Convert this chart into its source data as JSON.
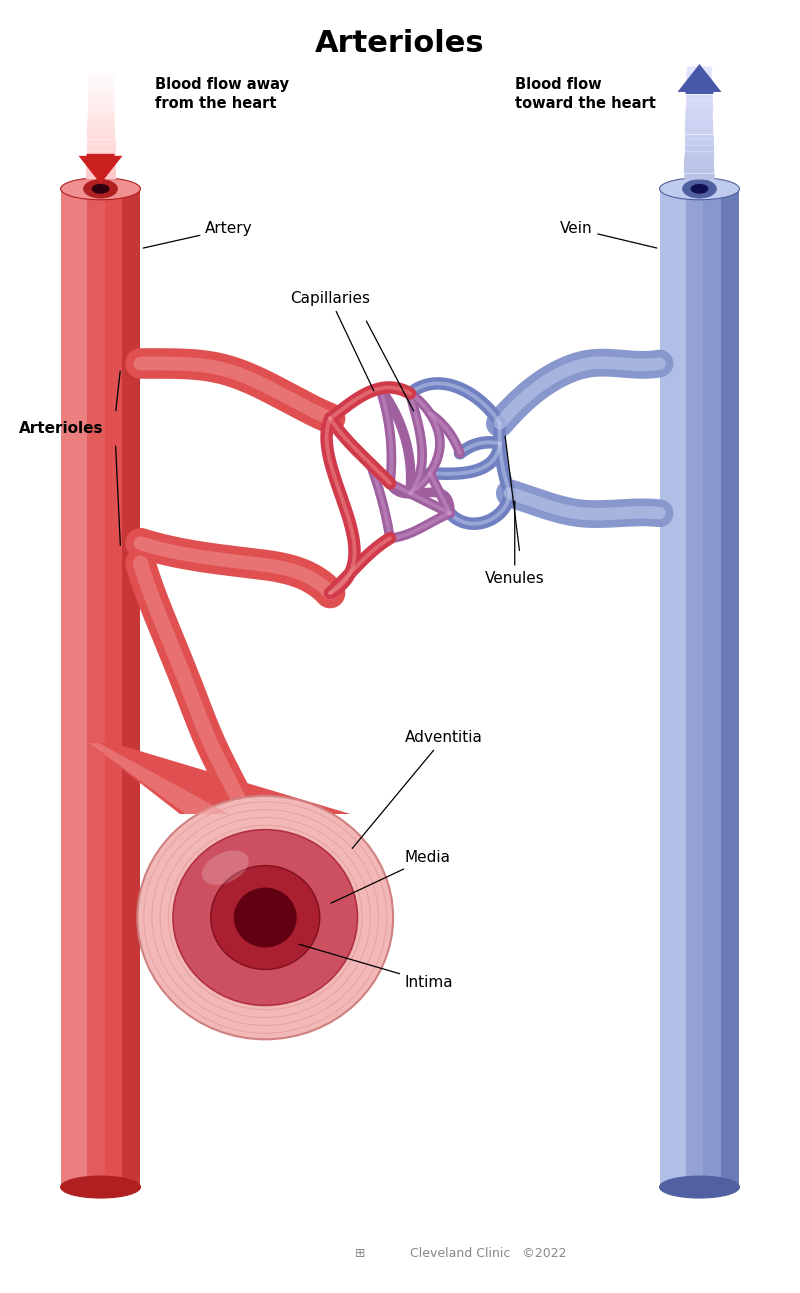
{
  "title": "Arterioles",
  "title_fontsize": 22,
  "title_fontweight": "bold",
  "bg_color": "#ffffff",
  "artery_color": "#E05050",
  "artery_dark": "#B02020",
  "artery_highlight": "#F09090",
  "artery_light": "#F8C0C0",
  "vein_color": "#8898CC",
  "vein_dark": "#5060A0",
  "vein_highlight": "#C0CCEE",
  "vein_light": "#D8E0F5",
  "cap_red": "#D03A4A",
  "cap_purple": "#A060A0",
  "cap_blue": "#7080C0",
  "blood_flow_away": "Blood flow away\nfrom the heart",
  "blood_flow_toward": "Blood flow\ntoward the heart",
  "label_artery": "Artery",
  "label_vein": "Vein",
  "label_capillaries": "Capillaries",
  "label_arterioles": "Arterioles",
  "label_venules": "Venules",
  "label_adventitia": "Adventitia",
  "label_media": "Media",
  "label_intima": "Intima",
  "footer_color": "#888888",
  "arrow_red_tip": "#CC2020",
  "arrow_red_tail": "#F0A0A0",
  "arrow_blue_tip": "#5060B0",
  "arrow_blue_tail": "#B0C0E8"
}
